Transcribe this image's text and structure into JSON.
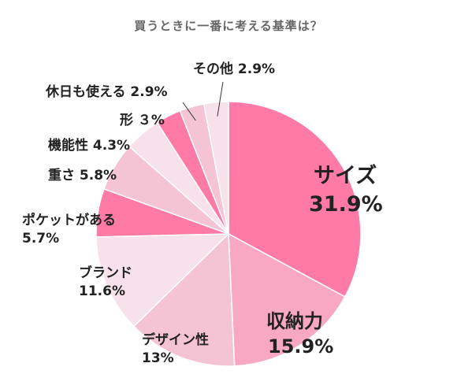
{
  "chart_data": {
    "type": "pie",
    "title": "買うときに一番に考える基準は？",
    "slices": [
      {
        "name": "サイズ",
        "value": 31.9,
        "value_label": "31.9%",
        "color": "#ff7ba6"
      },
      {
        "name": "収納力",
        "value": 15.9,
        "value_label": "15.9%",
        "color": "#f9a8c4"
      },
      {
        "name": "デザイン性",
        "value": 13,
        "value_label": "13%",
        "color": "#f4c3d4"
      },
      {
        "name": "ブランド",
        "value": 11.6,
        "value_label": "11.6%",
        "color": "#f7e1ea"
      },
      {
        "name": "ポケットがある",
        "value": 5.7,
        "value_label": "5.7%",
        "color": "#ff7ba6"
      },
      {
        "name": "重さ",
        "value": 5.8,
        "value_label": "5.8%",
        "color": "#f4c3d4"
      },
      {
        "name": "機能性",
        "value": 4.3,
        "value_label": "4.3%",
        "color": "#f7e1ea"
      },
      {
        "name": "形",
        "value": 3,
        "value_label": "3%",
        "color": "#ff7ba6"
      },
      {
        "name": "休日も使える",
        "value": 2.9,
        "value_label": "2.9%",
        "color": "#f4c3d4"
      },
      {
        "name": "その他",
        "value": 2.9,
        "value_label": "2.9%",
        "color": "#f7e1ea"
      }
    ],
    "label_texts": {
      "size": [
        "サイズ",
        "31.9%"
      ],
      "storage": [
        "収納力",
        "15.9%"
      ],
      "design": [
        "デザイン性",
        "13%"
      ],
      "brand": [
        "ブランド",
        "11.6%"
      ],
      "pocket": [
        "ポケットがある",
        "5.7%"
      ],
      "weight": "重さ 5.8%",
      "function": "機能性 4.3%",
      "shape": "形 ３%",
      "holiday": "休日も使える 2.9%",
      "other": "その他 2.9%"
    }
  }
}
